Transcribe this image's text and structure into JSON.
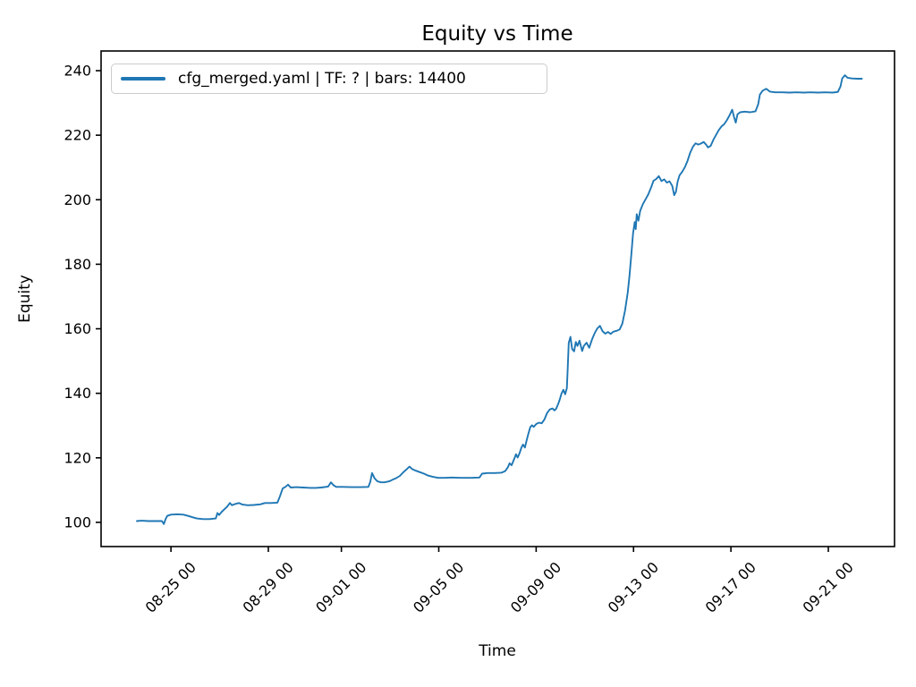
{
  "figure": {
    "background": "#ffffff",
    "frame_color": "#000000",
    "text_color": "#000000"
  },
  "chart_data": {
    "type": "line",
    "title": "Equity vs Time",
    "xlabel": "Time",
    "ylabel": "Equity",
    "grid": false,
    "x_unit": "days since 08-25 00:00",
    "xlim": [
      -2.87,
      29.72
    ],
    "ylim": [
      92.5,
      246.1
    ],
    "y_ticks": [
      100,
      120,
      140,
      160,
      180,
      200,
      220,
      240
    ],
    "x_ticks": [
      {
        "d": 0,
        "label": "08-25 00"
      },
      {
        "d": 4,
        "label": "08-29 00"
      },
      {
        "d": 7,
        "label": "09-01 00"
      },
      {
        "d": 11,
        "label": "09-05 00"
      },
      {
        "d": 15,
        "label": "09-09 00"
      },
      {
        "d": 19,
        "label": "09-13 00"
      },
      {
        "d": 23,
        "label": "09-17 00"
      },
      {
        "d": 27,
        "label": "09-21 00"
      }
    ],
    "legend": {
      "position": "upper left",
      "border_color": "#cccccc",
      "entries": [
        {
          "label": "cfg_merged.yaml | TF: ? | bars: 14400",
          "color": "#1f77b4"
        }
      ]
    },
    "series": [
      {
        "name": "cfg_merged.yaml | TF: ? | bars: 14400",
        "color": "#1f77b4",
        "points": [
          [
            -1.4,
            100.4
          ],
          [
            -1.21,
            100.5
          ],
          [
            -0.92,
            100.4
          ],
          [
            -0.62,
            100.4
          ],
          [
            -0.37,
            100.4
          ],
          [
            -0.29,
            99.5
          ],
          [
            -0.22,
            101.0
          ],
          [
            -0.15,
            102.0
          ],
          [
            0.0,
            102.4
          ],
          [
            0.26,
            102.5
          ],
          [
            0.51,
            102.4
          ],
          [
            0.7,
            102.0
          ],
          [
            0.88,
            101.6
          ],
          [
            1.06,
            101.2
          ],
          [
            1.32,
            101.0
          ],
          [
            1.58,
            101.0
          ],
          [
            1.84,
            101.2
          ],
          [
            1.91,
            102.9
          ],
          [
            1.98,
            102.3
          ],
          [
            2.09,
            103.3
          ],
          [
            2.2,
            104.1
          ],
          [
            2.31,
            104.9
          ],
          [
            2.42,
            106.0
          ],
          [
            2.5,
            105.3
          ],
          [
            2.64,
            105.7
          ],
          [
            2.79,
            106.0
          ],
          [
            2.94,
            105.5
          ],
          [
            3.16,
            105.3
          ],
          [
            3.41,
            105.4
          ],
          [
            3.67,
            105.6
          ],
          [
            3.86,
            106.0
          ],
          [
            4.11,
            106.0
          ],
          [
            4.37,
            106.1
          ],
          [
            4.48,
            108.1
          ],
          [
            4.59,
            110.5
          ],
          [
            4.7,
            111.0
          ],
          [
            4.81,
            111.7
          ],
          [
            4.92,
            110.8
          ],
          [
            5.14,
            110.9
          ],
          [
            5.43,
            110.8
          ],
          [
            5.73,
            110.7
          ],
          [
            5.95,
            110.7
          ],
          [
            6.17,
            110.8
          ],
          [
            6.46,
            111.1
          ],
          [
            6.57,
            112.4
          ],
          [
            6.68,
            111.5
          ],
          [
            6.79,
            111.0
          ],
          [
            7.08,
            111.0
          ],
          [
            7.42,
            110.9
          ],
          [
            7.78,
            110.9
          ],
          [
            8.11,
            111.0
          ],
          [
            8.19,
            112.6
          ],
          [
            8.26,
            115.3
          ],
          [
            8.37,
            113.6
          ],
          [
            8.48,
            112.7
          ],
          [
            8.63,
            112.4
          ],
          [
            8.77,
            112.4
          ],
          [
            8.96,
            112.7
          ],
          [
            9.1,
            113.2
          ],
          [
            9.25,
            113.7
          ],
          [
            9.4,
            114.4
          ],
          [
            9.54,
            115.5
          ],
          [
            9.69,
            116.5
          ],
          [
            9.8,
            117.3
          ],
          [
            9.91,
            116.5
          ],
          [
            10.06,
            116.0
          ],
          [
            10.21,
            115.6
          ],
          [
            10.39,
            115.1
          ],
          [
            10.57,
            114.5
          ],
          [
            10.76,
            114.1
          ],
          [
            10.98,
            113.8
          ],
          [
            11.23,
            113.8
          ],
          [
            11.56,
            113.9
          ],
          [
            11.93,
            113.8
          ],
          [
            12.3,
            113.8
          ],
          [
            12.67,
            113.9
          ],
          [
            12.78,
            115.1
          ],
          [
            13.0,
            115.3
          ],
          [
            13.29,
            115.3
          ],
          [
            13.58,
            115.4
          ],
          [
            13.73,
            115.9
          ],
          [
            13.84,
            117.1
          ],
          [
            13.91,
            118.3
          ],
          [
            13.99,
            117.7
          ],
          [
            14.1,
            119.7
          ],
          [
            14.17,
            121.1
          ],
          [
            14.24,
            120.1
          ],
          [
            14.32,
            121.5
          ],
          [
            14.39,
            123.1
          ],
          [
            14.46,
            124.1
          ],
          [
            14.54,
            123.2
          ],
          [
            14.61,
            125.5
          ],
          [
            14.68,
            127.5
          ],
          [
            14.76,
            129.5
          ],
          [
            14.83,
            130.1
          ],
          [
            14.9,
            129.6
          ],
          [
            15.01,
            130.5
          ],
          [
            15.12,
            130.9
          ],
          [
            15.23,
            130.7
          ],
          [
            15.34,
            131.9
          ],
          [
            15.45,
            133.9
          ],
          [
            15.56,
            135.0
          ],
          [
            15.67,
            135.3
          ],
          [
            15.75,
            134.7
          ],
          [
            15.82,
            135.2
          ],
          [
            15.9,
            136.6
          ],
          [
            15.97,
            138.1
          ],
          [
            16.04,
            139.9
          ],
          [
            16.12,
            141.1
          ],
          [
            16.19,
            139.7
          ],
          [
            16.26,
            141.6
          ],
          [
            16.3,
            148.0
          ],
          [
            16.34,
            155.6
          ],
          [
            16.41,
            157.5
          ],
          [
            16.48,
            153.7
          ],
          [
            16.56,
            153.0
          ],
          [
            16.63,
            155.9
          ],
          [
            16.7,
            154.7
          ],
          [
            16.78,
            156.3
          ],
          [
            16.89,
            153.1
          ],
          [
            16.96,
            154.7
          ],
          [
            17.07,
            155.7
          ],
          [
            17.18,
            154.1
          ],
          [
            17.29,
            156.6
          ],
          [
            17.4,
            158.6
          ],
          [
            17.51,
            160.1
          ],
          [
            17.62,
            160.9
          ],
          [
            17.73,
            159.2
          ],
          [
            17.84,
            158.5
          ],
          [
            17.95,
            159.0
          ],
          [
            18.06,
            158.4
          ],
          [
            18.17,
            159.1
          ],
          [
            18.32,
            159.4
          ],
          [
            18.43,
            159.8
          ],
          [
            18.54,
            161.6
          ],
          [
            18.65,
            165.6
          ],
          [
            18.76,
            171.1
          ],
          [
            18.83,
            176.1
          ],
          [
            18.91,
            183.1
          ],
          [
            18.98,
            189.6
          ],
          [
            19.05,
            193.1
          ],
          [
            19.09,
            190.9
          ],
          [
            19.13,
            195.5
          ],
          [
            19.2,
            193.5
          ],
          [
            19.27,
            196.5
          ],
          [
            19.38,
            198.6
          ],
          [
            19.49,
            200.1
          ],
          [
            19.6,
            201.6
          ],
          [
            19.71,
            203.6
          ],
          [
            19.82,
            205.9
          ],
          [
            19.93,
            206.4
          ],
          [
            20.04,
            207.3
          ],
          [
            20.15,
            205.8
          ],
          [
            20.26,
            206.3
          ],
          [
            20.37,
            205.3
          ],
          [
            20.48,
            205.7
          ],
          [
            20.59,
            204.3
          ],
          [
            20.67,
            201.4
          ],
          [
            20.74,
            202.4
          ],
          [
            20.81,
            205.6
          ],
          [
            20.89,
            207.6
          ],
          [
            21.0,
            208.7
          ],
          [
            21.11,
            210.1
          ],
          [
            21.22,
            212.1
          ],
          [
            21.33,
            214.6
          ],
          [
            21.44,
            216.4
          ],
          [
            21.55,
            217.5
          ],
          [
            21.66,
            217.1
          ],
          [
            21.77,
            217.4
          ],
          [
            21.88,
            217.9
          ],
          [
            21.99,
            217.0
          ],
          [
            22.06,
            216.2
          ],
          [
            22.17,
            216.7
          ],
          [
            22.28,
            218.6
          ],
          [
            22.39,
            220.1
          ],
          [
            22.5,
            221.6
          ],
          [
            22.61,
            222.7
          ],
          [
            22.72,
            223.4
          ],
          [
            22.83,
            224.6
          ],
          [
            22.94,
            226.1
          ],
          [
            23.05,
            227.9
          ],
          [
            23.13,
            225.6
          ],
          [
            23.2,
            223.9
          ],
          [
            23.27,
            226.5
          ],
          [
            23.38,
            227.1
          ],
          [
            23.57,
            227.3
          ],
          [
            23.79,
            227.1
          ],
          [
            24.01,
            227.4
          ],
          [
            24.12,
            229.6
          ],
          [
            24.19,
            232.6
          ],
          [
            24.3,
            233.8
          ],
          [
            24.45,
            234.4
          ],
          [
            24.6,
            233.5
          ],
          [
            24.82,
            233.3
          ],
          [
            25.11,
            233.3
          ],
          [
            25.4,
            233.2
          ],
          [
            25.7,
            233.3
          ],
          [
            25.99,
            233.2
          ],
          [
            26.28,
            233.3
          ],
          [
            26.58,
            233.2
          ],
          [
            26.87,
            233.3
          ],
          [
            27.17,
            233.2
          ],
          [
            27.39,
            233.4
          ],
          [
            27.5,
            235.1
          ],
          [
            27.57,
            237.6
          ],
          [
            27.68,
            238.6
          ],
          [
            27.79,
            237.8
          ],
          [
            27.97,
            237.6
          ],
          [
            28.19,
            237.5
          ],
          [
            28.38,
            237.5
          ]
        ]
      }
    ]
  }
}
